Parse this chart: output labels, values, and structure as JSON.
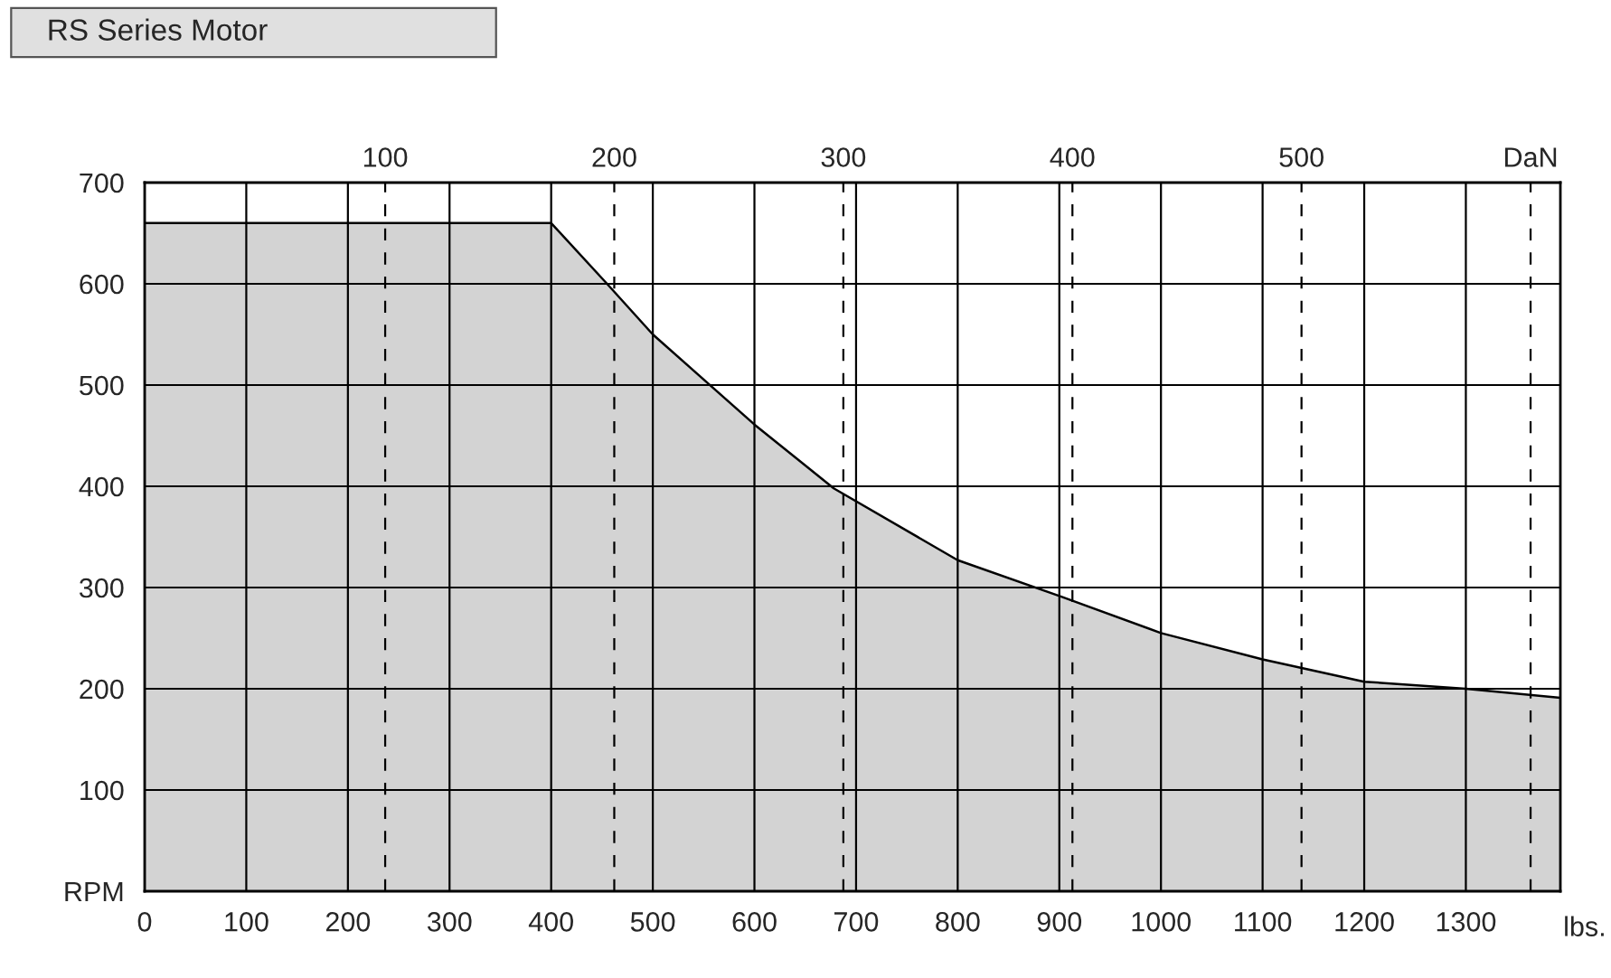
{
  "chart_data": {
    "type": "area",
    "title": "RS Series Motor",
    "xlabel": "lbs.",
    "x": [
      0,
      400,
      455,
      500,
      600,
      678,
      800,
      902,
      1000,
      1100,
      1200,
      1300,
      1393
    ],
    "series": [
      {
        "color": "#d3d3d3",
        "values": [
          660,
          660,
          600,
          550,
          461,
          398,
          327,
          291,
          255,
          229,
          207,
          200,
          191
        ]
      }
    ],
    "xlim": [
      0,
      1393
    ],
    "xticks": [
      0,
      100,
      200,
      300,
      400,
      500,
      600,
      700,
      800,
      900,
      1000,
      1100,
      1200,
      1300
    ],
    "ylim": [
      0,
      700
    ],
    "yticks": [
      {
        "value": 0,
        "label": "RPM"
      },
      100,
      200,
      300,
      400,
      500,
      600,
      700
    ],
    "x2lim": [
      -5,
      613
    ],
    "x2ticks": [
      100,
      200,
      300,
      400,
      500,
      {
        "value": 600,
        "label": "DaN"
      }
    ],
    "grid": true,
    "legend": false
  }
}
